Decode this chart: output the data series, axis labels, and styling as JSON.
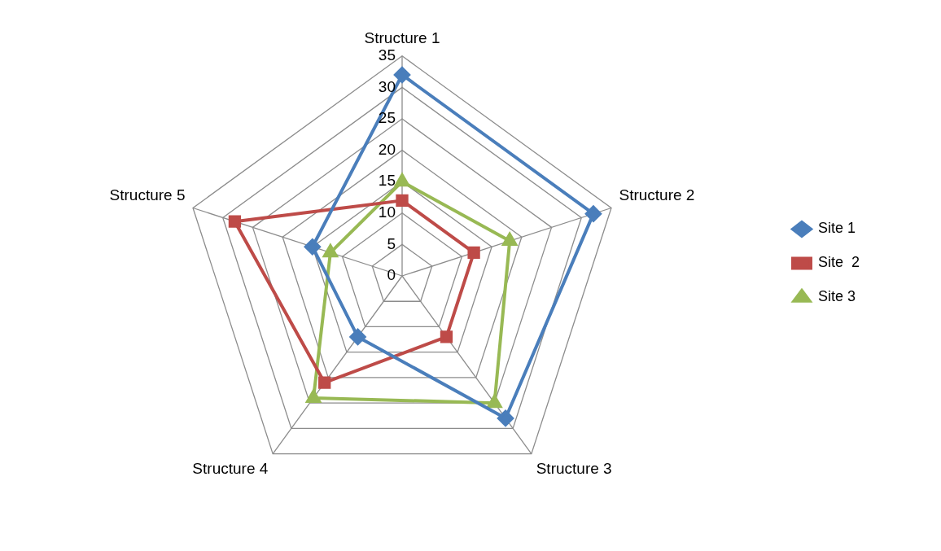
{
  "chart_data": {
    "type": "radar",
    "categories": [
      "Structure 1",
      "Structure 2",
      "Structure 3",
      "Structure 4",
      "Structure 5"
    ],
    "series": [
      {
        "name": "Site 1",
        "color": "#4a7ebb",
        "values": [
          32,
          32,
          28,
          12,
          15
        ],
        "marker": "diamond"
      },
      {
        "name": "Site  2",
        "color": "#be4b48",
        "values": [
          12,
          12,
          12,
          21,
          28
        ],
        "marker": "square"
      },
      {
        "name": "Site 3",
        "color": "#98b954",
        "values": [
          15,
          18,
          25,
          24,
          12
        ],
        "marker": "triangle"
      }
    ],
    "ylim": [
      0,
      35
    ],
    "yticks": [
      0,
      5,
      10,
      15,
      20,
      25,
      30,
      35
    ],
    "grid": true,
    "legend": "right",
    "line_style": "solid"
  }
}
